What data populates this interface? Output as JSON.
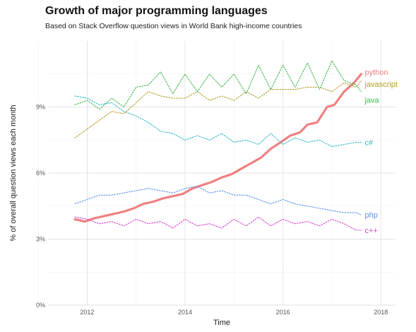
{
  "chart_data": {
    "type": "line",
    "title": "Growth of major programming languages",
    "subtitle": "Based on Stack Overflow question views in World Bank high-income countries",
    "xlabel": "Time",
    "ylabel": "% of overall question views each month",
    "xlim": [
      2011.2,
      2018.3
    ],
    "ylim": [
      0,
      12
    ],
    "x_ticks": [
      2012,
      2014,
      2016,
      2018
    ],
    "x_tick_labels": [
      "2012",
      "2014",
      "2016",
      "2018"
    ],
    "y_ticks": [
      0,
      3,
      6,
      9
    ],
    "y_tick_labels": [
      "0%",
      "3%",
      "6%",
      "9%"
    ],
    "grid": true,
    "legend": "direct-labels-right",
    "series": [
      {
        "name": "python",
        "color": "#f08080",
        "style": "solid",
        "x": [
          2011.75,
          2011.95,
          2012.15,
          2012.35,
          2012.55,
          2012.75,
          2012.95,
          2013.15,
          2013.35,
          2013.55,
          2013.75,
          2013.95,
          2014.15,
          2014.35,
          2014.55,
          2014.75,
          2014.95,
          2015.15,
          2015.35,
          2015.55,
          2015.75,
          2015.95,
          2016.15,
          2016.35,
          2016.5,
          2016.7,
          2016.9,
          2017.05,
          2017.25,
          2017.45,
          2017.6
        ],
        "y": [
          3.9,
          3.8,
          3.95,
          4.05,
          4.15,
          4.25,
          4.4,
          4.6,
          4.7,
          4.85,
          4.95,
          5.05,
          5.3,
          5.45,
          5.6,
          5.8,
          5.95,
          6.2,
          6.45,
          6.7,
          7.1,
          7.4,
          7.7,
          7.85,
          8.2,
          8.3,
          9.0,
          9.1,
          9.7,
          10.1,
          10.5
        ]
      },
      {
        "name": "javascript",
        "color": "#b39c22",
        "style": "dotted",
        "x": [
          2011.75,
          2012.0,
          2012.25,
          2012.5,
          2012.75,
          2013.0,
          2013.25,
          2013.5,
          2013.75,
          2014.0,
          2014.25,
          2014.5,
          2014.75,
          2015.0,
          2015.25,
          2015.5,
          2015.75,
          2016.0,
          2016.25,
          2016.5,
          2016.75,
          2017.0,
          2017.25,
          2017.5,
          2017.6
        ],
        "y": [
          7.6,
          8.0,
          8.4,
          8.8,
          8.7,
          9.2,
          9.7,
          9.5,
          9.4,
          9.4,
          9.7,
          9.3,
          9.5,
          9.3,
          9.7,
          9.4,
          9.8,
          9.8,
          9.8,
          9.9,
          9.9,
          9.7,
          10.1,
          9.9,
          10.2
        ]
      },
      {
        "name": "java",
        "color": "#3cb84a",
        "style": "dotted",
        "x": [
          2011.75,
          2012.0,
          2012.25,
          2012.5,
          2012.75,
          2013.0,
          2013.25,
          2013.5,
          2013.75,
          2014.0,
          2014.25,
          2014.5,
          2014.75,
          2015.0,
          2015.25,
          2015.5,
          2015.75,
          2016.0,
          2016.25,
          2016.5,
          2016.75,
          2017.0,
          2017.25,
          2017.5,
          2017.6
        ],
        "y": [
          9.1,
          9.3,
          8.9,
          9.4,
          9.0,
          9.9,
          10.0,
          10.6,
          9.6,
          10.5,
          9.7,
          10.5,
          9.9,
          10.5,
          9.6,
          10.9,
          9.8,
          10.9,
          9.9,
          11.0,
          9.8,
          11.1,
          10.2,
          10.0,
          9.7
        ]
      },
      {
        "name": "c#",
        "color": "#30b8c8",
        "style": "dotted",
        "x": [
          2011.75,
          2012.0,
          2012.25,
          2012.5,
          2012.75,
          2013.0,
          2013.25,
          2013.5,
          2013.75,
          2014.0,
          2014.25,
          2014.5,
          2014.75,
          2015.0,
          2015.25,
          2015.5,
          2015.75,
          2016.0,
          2016.25,
          2016.5,
          2016.75,
          2017.0,
          2017.25,
          2017.5,
          2017.6
        ],
        "y": [
          9.5,
          9.4,
          9.1,
          9.2,
          8.8,
          8.6,
          8.3,
          7.9,
          7.8,
          7.5,
          7.7,
          7.5,
          7.8,
          7.4,
          7.5,
          7.3,
          7.8,
          7.3,
          7.6,
          7.4,
          7.5,
          7.2,
          7.3,
          7.4,
          7.4
        ]
      },
      {
        "name": "php",
        "color": "#5b8ff0",
        "style": "dotted",
        "x": [
          2011.75,
          2012.0,
          2012.25,
          2012.5,
          2012.75,
          2013.0,
          2013.25,
          2013.5,
          2013.75,
          2014.0,
          2014.25,
          2014.5,
          2014.75,
          2015.0,
          2015.25,
          2015.5,
          2015.75,
          2016.0,
          2016.25,
          2016.5,
          2016.75,
          2017.0,
          2017.25,
          2017.5,
          2017.6
        ],
        "y": [
          4.6,
          4.8,
          5.0,
          5.0,
          5.1,
          5.2,
          5.3,
          5.2,
          5.1,
          5.3,
          5.4,
          5.1,
          5.2,
          5.0,
          5.0,
          4.8,
          4.6,
          4.8,
          4.6,
          4.5,
          4.4,
          4.3,
          4.2,
          4.2,
          4.1
        ]
      },
      {
        "name": "c++",
        "color": "#d83fd0",
        "style": "dotted",
        "x": [
          2011.75,
          2012.0,
          2012.25,
          2012.5,
          2012.75,
          2013.0,
          2013.25,
          2013.5,
          2013.75,
          2014.0,
          2014.25,
          2014.5,
          2014.75,
          2015.0,
          2015.25,
          2015.5,
          2015.75,
          2016.0,
          2016.25,
          2016.5,
          2016.75,
          2017.0,
          2017.25,
          2017.5,
          2017.6
        ],
        "y": [
          4.0,
          3.9,
          3.7,
          3.8,
          3.6,
          3.9,
          3.7,
          3.8,
          3.5,
          3.9,
          3.6,
          3.7,
          3.5,
          3.9,
          3.6,
          4.0,
          3.6,
          3.9,
          3.7,
          3.8,
          3.6,
          3.9,
          3.7,
          3.4,
          3.4
        ]
      }
    ]
  }
}
